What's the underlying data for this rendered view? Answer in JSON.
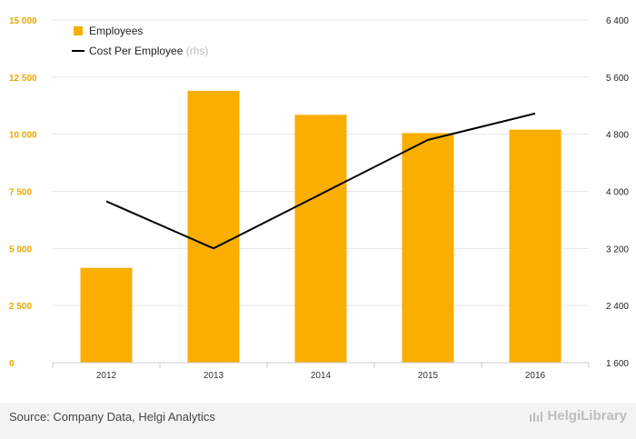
{
  "chart_data": {
    "type": "bar",
    "categories": [
      "2012",
      "2013",
      "2014",
      "2015",
      "2016"
    ],
    "series": [
      {
        "name": "Employees",
        "kind": "bar",
        "axis": "left",
        "color": "#f9ae00",
        "values": [
          4150,
          11900,
          10850,
          10050,
          10200
        ]
      },
      {
        "name": "Cost Per Employee",
        "legend_suffix": "(rhs)",
        "kind": "line",
        "axis": "right",
        "color": "#000000",
        "values": [
          3860,
          3200,
          3960,
          4720,
          5090
        ]
      }
    ],
    "y_left": {
      "range": [
        0,
        15000
      ],
      "ticks": [
        0,
        2500,
        5000,
        7500,
        10000,
        12500,
        15000
      ],
      "tick_labels": [
        "0",
        "2 500",
        "5 000",
        "7 500",
        "10 000",
        "12 500",
        "15 000"
      ],
      "label_color": "#e8a800"
    },
    "y_right": {
      "range": [
        1600,
        6400
      ],
      "ticks": [
        1600,
        2400,
        3200,
        4000,
        4800,
        5600,
        6400
      ],
      "tick_labels": [
        "1 600",
        "2 400",
        "3 200",
        "4 000",
        "4 800",
        "5 600",
        "6 400"
      ]
    },
    "grid": true,
    "legend_position": "top-left"
  },
  "footer": {
    "source": "Source: Company Data, Helgi Analytics",
    "brand": "HelgiLibrary"
  }
}
